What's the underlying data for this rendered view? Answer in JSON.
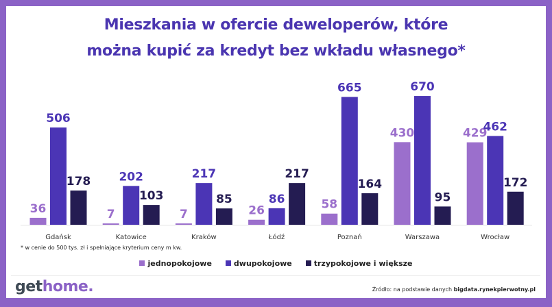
{
  "chart_data": {
    "type": "bar",
    "title_line1": "Mieszkania w ofercie deweloperów, które",
    "title_line2": "można kupić za kredyt bez wkładu własnego*",
    "categories": [
      "Gdańsk",
      "Katowice",
      "Kraków",
      "Łódź",
      "Poznań",
      "Warszawa",
      "Wrocław"
    ],
    "series": [
      {
        "name": "jednopokojowe",
        "color": "#9b6fcc",
        "values": [
          36,
          7,
          7,
          26,
          58,
          430,
          429
        ]
      },
      {
        "name": "dwupokojowe",
        "color": "#4b35b5",
        "values": [
          506,
          202,
          217,
          86,
          665,
          670,
          462
        ]
      },
      {
        "name": "trzypokojowe i większe",
        "color": "#241c52",
        "values": [
          178,
          103,
          85,
          217,
          164,
          95,
          172
        ]
      }
    ],
    "ylim": [
      0,
      700
    ],
    "grid": false,
    "legend_position": "bottom",
    "footnote": "* w cenie do 500 tys. zł i spełniające kryterium ceny m kw."
  },
  "footer": {
    "logo_part1": "get",
    "logo_part2": "home.",
    "source_prefix": "Źródło: na podstawie danych ",
    "source_bold": "bigdata.rynekpierwotny.pl"
  }
}
